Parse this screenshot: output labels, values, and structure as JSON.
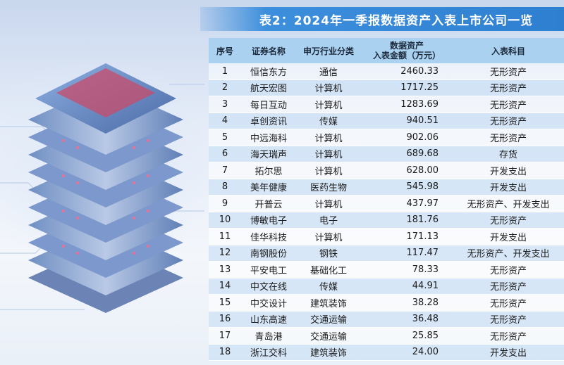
{
  "title": "表2：2024年一季报数据资产入表上市公司一览",
  "headers": {
    "seq": "序号",
    "name": "证券名称",
    "industry": "申万行业分类",
    "amount_line1": "数据资产",
    "amount_line2": "入表金额（万元）",
    "subject": "入表科目"
  },
  "rows": [
    {
      "seq": "1",
      "name": "恒信东方",
      "industry": "通信",
      "amount": "2460.33",
      "subject": "无形资产"
    },
    {
      "seq": "2",
      "name": "航天宏图",
      "industry": "计算机",
      "amount": "1717.25",
      "subject": "无形资产"
    },
    {
      "seq": "3",
      "name": "每日互动",
      "industry": "计算机",
      "amount": "1283.69",
      "subject": "无形资产"
    },
    {
      "seq": "4",
      "name": "卓创资讯",
      "industry": "传媒",
      "amount": "940.51",
      "subject": "无形资产"
    },
    {
      "seq": "5",
      "name": "中远海科",
      "industry": "计算机",
      "amount": "902.06",
      "subject": "无形资产"
    },
    {
      "seq": "6",
      "name": "海天瑞声",
      "industry": "计算机",
      "amount": "689.68",
      "subject": "存货"
    },
    {
      "seq": "7",
      "name": "拓尔思",
      "industry": "计算机",
      "amount": "628.00",
      "subject": "开发支出"
    },
    {
      "seq": "8",
      "name": "美年健康",
      "industry": "医药生物",
      "amount": "545.98",
      "subject": "开发支出"
    },
    {
      "seq": "9",
      "name": "开普云",
      "industry": "计算机",
      "amount": "437.97",
      "subject": "无形资产、开发支出"
    },
    {
      "seq": "10",
      "name": "博敏电子",
      "industry": "电子",
      "amount": "181.76",
      "subject": "无形资产"
    },
    {
      "seq": "11",
      "name": "佳华科技",
      "industry": "计算机",
      "amount": "171.13",
      "subject": "开发支出"
    },
    {
      "seq": "12",
      "name": "南钢股份",
      "industry": "钢铁",
      "amount": "117.47",
      "subject": "无形资产、开发支出"
    },
    {
      "seq": "13",
      "name": "平安电工",
      "industry": "基础化工",
      "amount": "78.33",
      "subject": "无形资产"
    },
    {
      "seq": "14",
      "name": "中文在线",
      "industry": "传媒",
      "amount": "44.91",
      "subject": "无形资产"
    },
    {
      "seq": "15",
      "name": "中交设计",
      "industry": "建筑装饰",
      "amount": "38.28",
      "subject": "无形资产"
    },
    {
      "seq": "16",
      "name": "山东高速",
      "industry": "交通运输",
      "amount": "36.48",
      "subject": "无形资产"
    },
    {
      "seq": "17",
      "name": "青岛港",
      "industry": "交通运输",
      "amount": "25.85",
      "subject": "无形资产"
    },
    {
      "seq": "18",
      "name": "浙江交科",
      "industry": "建筑装饰",
      "amount": "24.00",
      "subject": "开发支出"
    }
  ]
}
